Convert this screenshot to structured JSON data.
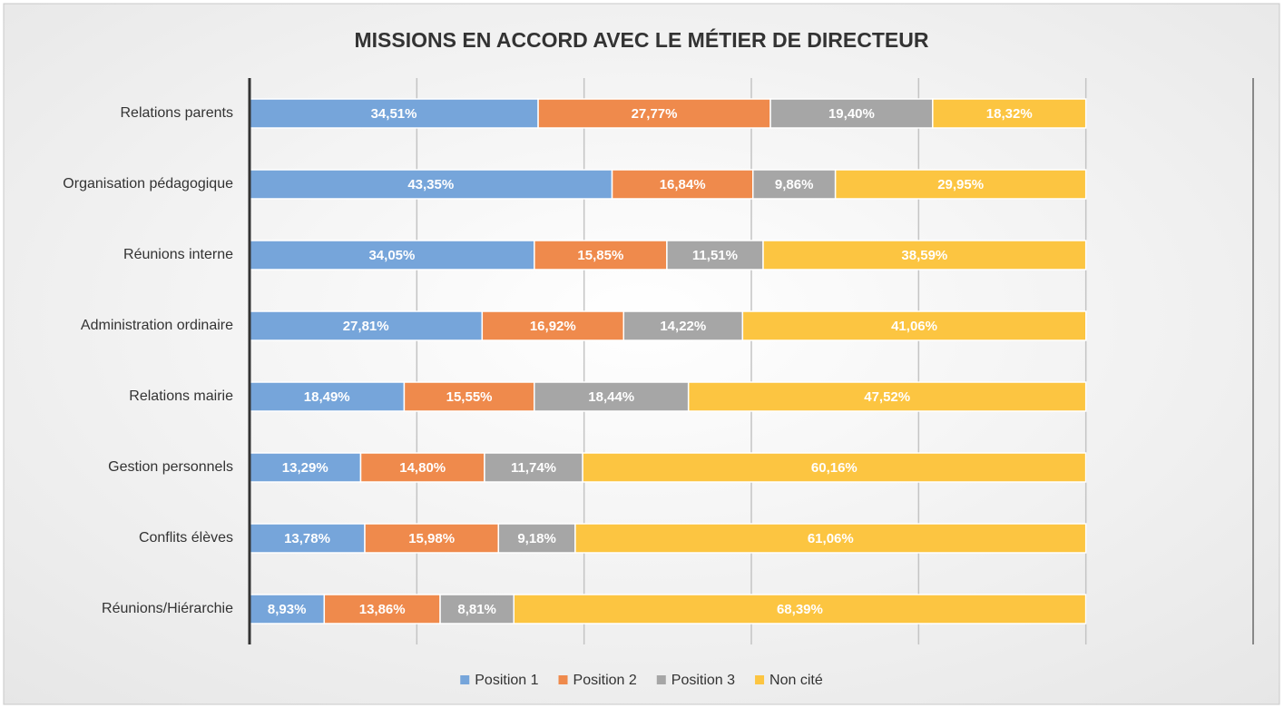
{
  "chart_data": {
    "type": "stacked_bar_horizontal",
    "title": "MISSIONS EN ACCORD AVEC LE MÉTIER DE DIRECTEUR",
    "categories": [
      "Relations parents",
      "Organisation pédagogique",
      "Réunions interne",
      "Administration ordinaire",
      "Relations mairie",
      "Gestion personnels",
      "Conflits élèves",
      "Réunions/Hiérarchie"
    ],
    "series": [
      {
        "name": "Position 1",
        "color": "#76a5da",
        "values": [
          34.51,
          43.35,
          34.05,
          27.81,
          18.49,
          13.29,
          13.78,
          8.93
        ],
        "value_labels": [
          "34,51%",
          "43,35%",
          "34,05%",
          "27,81%",
          "18,49%",
          "13,29%",
          "13,78%",
          "8,93%"
        ]
      },
      {
        "name": "Position 2",
        "color": "#ef8a4c",
        "values": [
          27.77,
          16.84,
          15.85,
          16.92,
          15.55,
          14.8,
          15.98,
          13.86
        ],
        "value_labels": [
          "27,77%",
          "16,84%",
          "15,85%",
          "16,92%",
          "15,55%",
          "14,80%",
          "15,98%",
          "13,86%"
        ]
      },
      {
        "name": "Position 3",
        "color": "#a6a6a6",
        "values": [
          19.4,
          9.86,
          11.51,
          14.22,
          18.44,
          11.74,
          9.18,
          8.81
        ],
        "value_labels": [
          "19,40%",
          "9,86%",
          "11,51%",
          "14,22%",
          "18,44%",
          "11,74%",
          "9,18%",
          "8,81%"
        ]
      },
      {
        "name": "Non cité",
        "color": "#fcc541",
        "values": [
          18.32,
          29.95,
          38.59,
          41.06,
          47.52,
          60.16,
          61.06,
          68.39
        ],
        "value_labels": [
          "18,32%",
          "29,95%",
          "38,59%",
          "41,06%",
          "47,52%",
          "60,16%",
          "61,06%",
          "68,39%"
        ]
      }
    ],
    "xlim": [
      0,
      120
    ],
    "xticks": [
      0,
      20,
      40,
      60,
      80,
      100,
      120
    ],
    "grid": true,
    "legend": "bottom"
  }
}
